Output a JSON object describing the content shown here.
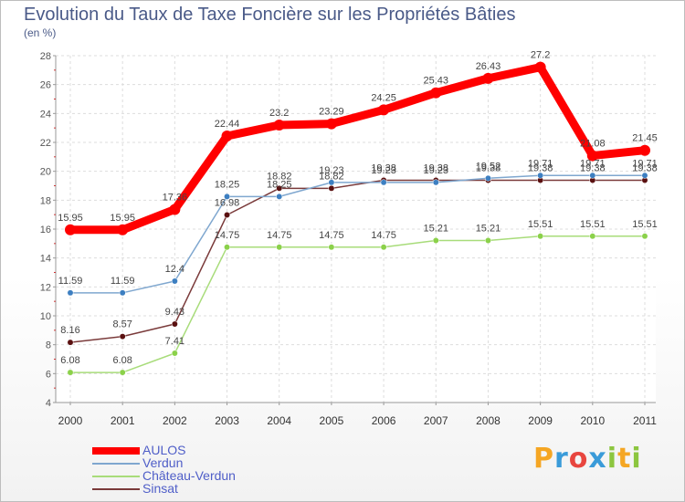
{
  "title": "Evolution du Taux de Taxe Foncière sur les Propriétés Bâties",
  "unit_label": "(en %)",
  "logo": {
    "text": "Proxiti",
    "letters": [
      "P",
      "r",
      "o",
      "x",
      "i",
      "t",
      "i"
    ],
    "colors": [
      "#f5a623",
      "#3a9bd9",
      "#e8463f",
      "#3a9bd9",
      "#8cc63f",
      "#f5a623",
      "#8cc63f"
    ]
  },
  "chart_data": {
    "type": "line",
    "title": "Evolution du Taux de Taxe Foncière sur les Propriétés Bâties",
    "ylabel": "(en %)",
    "xlabel": "",
    "ylim": [
      4,
      28
    ],
    "yticks": [
      4,
      6,
      8,
      10,
      12,
      14,
      16,
      18,
      20,
      22,
      24,
      26,
      28
    ],
    "categories": [
      "2000",
      "2001",
      "2002",
      "2003",
      "2004",
      "2005",
      "2006",
      "2007",
      "2008",
      "2009",
      "2010",
      "2011"
    ],
    "grid": true,
    "series": [
      {
        "name": "AULOS",
        "color": "#ff0000",
        "emphasis": true,
        "values": [
          15.95,
          15.95,
          17.36,
          22.44,
          23.2,
          23.29,
          24.25,
          25.43,
          26.43,
          27.2,
          21.08,
          21.45
        ],
        "labels": [
          "15.95",
          "15.95",
          "17.36",
          "22.44",
          "23.2",
          "23.29",
          "24.25",
          "25.43",
          "26.43",
          "27.2",
          "21.08",
          "21.45"
        ]
      },
      {
        "name": "Verdun",
        "color": "#7fa7cf",
        "marker": "#3d7fc1",
        "values": [
          11.59,
          11.59,
          12.4,
          18.25,
          18.25,
          19.23,
          19.23,
          19.23,
          19.52,
          19.71,
          19.71,
          19.71
        ],
        "labels": [
          "11.59",
          "11.59",
          "12.4",
          "18.25",
          "18.25",
          "19.23",
          "19.23",
          "19.23",
          "19.52",
          "19.71",
          "19.71",
          "19.71"
        ]
      },
      {
        "name": "Château-Verdun",
        "color": "#a8dc7a",
        "marker": "#8bd14a",
        "values": [
          6.08,
          6.08,
          7.41,
          14.75,
          14.75,
          14.75,
          14.75,
          15.21,
          15.21,
          15.51,
          15.51,
          15.51
        ],
        "labels": [
          "6.08",
          "6.08",
          "7.41",
          "14.75",
          "14.75",
          "14.75",
          "14.75",
          "15.21",
          "15.21",
          "15.51",
          "15.51",
          "15.51"
        ]
      },
      {
        "name": "Sinsat",
        "color": "#7a3a3a",
        "marker": "#5a1010",
        "values": [
          8.16,
          8.57,
          9.43,
          16.98,
          18.82,
          18.82,
          19.38,
          19.38,
          19.38,
          19.38,
          19.38,
          19.38
        ],
        "labels": [
          "8.16",
          "8.57",
          "9.43",
          "16.98",
          "18.82",
          "18.82",
          "19.38",
          "19.38",
          "19.38",
          "19.38",
          "19.38",
          "19.38"
        ]
      }
    ]
  }
}
